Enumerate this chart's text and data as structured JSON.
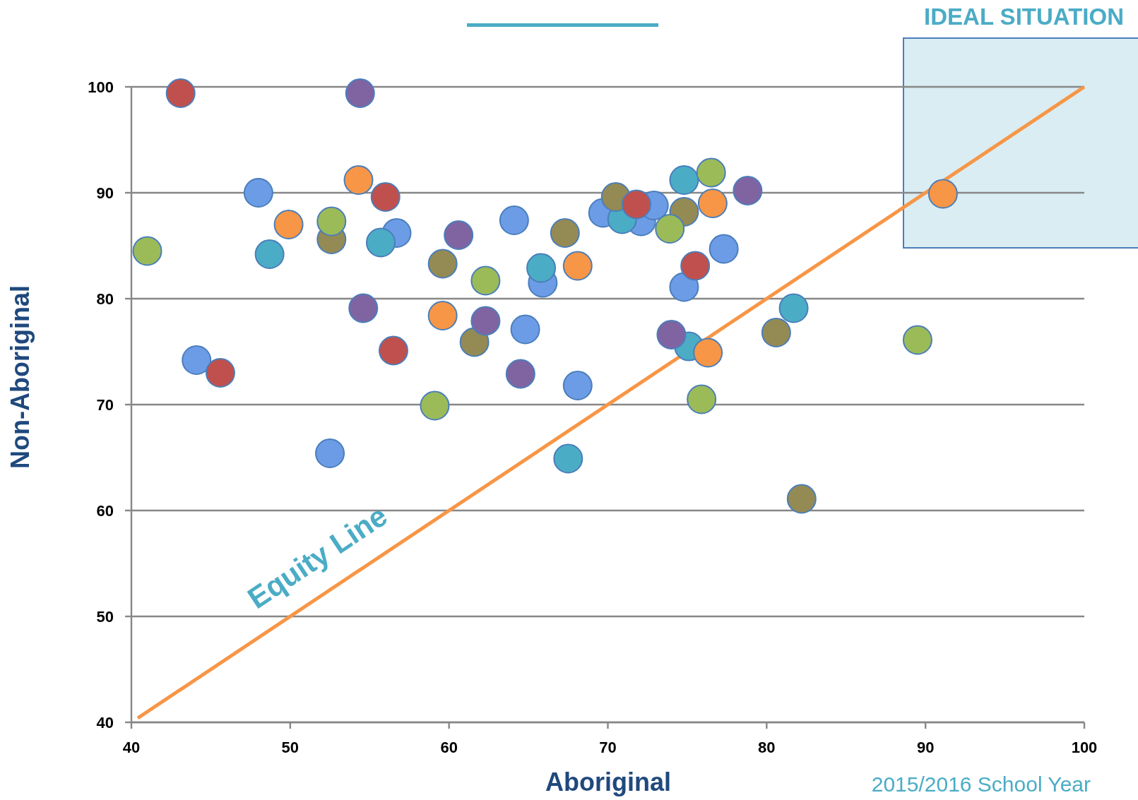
{
  "chart_data": {
    "type": "scatter",
    "xlabel": "Aboriginal",
    "ylabel": "Non-Aboriginal",
    "annotations": [
      "IDEAL SITUATION",
      "2015/2016 School Year"
    ],
    "xlim": [
      40,
      100
    ],
    "xticks": [
      40,
      50,
      60,
      70,
      80,
      90,
      100
    ],
    "ylim": [
      40,
      100
    ],
    "yticks": [
      40,
      50,
      60,
      70,
      80,
      90,
      100
    ],
    "grid": "y",
    "marker": "circle",
    "series": [
      {
        "name": "Equity Line",
        "type": "line",
        "color": "#f79646",
        "marker": "none",
        "x": [
          40.4,
          100
        ],
        "values": [
          40.4,
          100
        ]
      },
      {
        "color": "#6c9ce6",
        "x": [
          48.0,
          56.7,
          44.1,
          69.7,
          72.1,
          72.9,
          64.1,
          65.9,
          77.3,
          74.8,
          64.8,
          68.1,
          52.5
        ],
        "values": [
          90.0,
          86.2,
          74.2,
          88.1,
          87.3,
          88.8,
          87.4,
          81.5,
          84.7,
          81.1,
          77.1,
          71.8,
          65.4
        ]
      },
      {
        "color": "#4bacc6",
        "x": [
          48.7,
          55.7,
          74.8,
          70.9,
          65.8,
          75.1,
          67.5,
          81.7
        ],
        "values": [
          84.2,
          85.3,
          91.2,
          87.5,
          82.9,
          75.5,
          64.9,
          79.1
        ]
      },
      {
        "color": "#948a54",
        "x": [
          52.6,
          74.8,
          70.5,
          67.3,
          59.6,
          61.6,
          82.2,
          80.6
        ],
        "values": [
          85.6,
          88.2,
          89.6,
          86.2,
          83.3,
          75.9,
          61.1,
          76.8
        ]
      },
      {
        "color": "#9bbb59",
        "x": [
          52.6,
          41.0,
          76.5,
          73.9,
          62.3,
          75.9,
          59.1,
          89.5
        ],
        "values": [
          87.3,
          84.5,
          91.9,
          86.6,
          81.7,
          70.5,
          69.9,
          76.1
        ]
      },
      {
        "color": "#c0504d",
        "x": [
          43.1,
          56.0,
          56.5,
          45.6,
          71.8,
          75.5
        ],
        "values": [
          99.4,
          89.6,
          75.1,
          73.0,
          88.9,
          83.1
        ]
      },
      {
        "color": "#8064a2",
        "x": [
          54.4,
          54.6,
          78.8,
          60.6,
          62.3,
          64.5,
          74.0
        ],
        "values": [
          99.4,
          79.1,
          90.2,
          86.0,
          77.9,
          72.9,
          76.6
        ]
      },
      {
        "color": "#f79646",
        "x": [
          54.3,
          49.9,
          68.1,
          76.6,
          59.6,
          76.3,
          91.1
        ],
        "values": [
          91.2,
          87.0,
          83.1,
          89.0,
          78.4,
          74.9,
          89.9
        ]
      }
    ]
  }
}
